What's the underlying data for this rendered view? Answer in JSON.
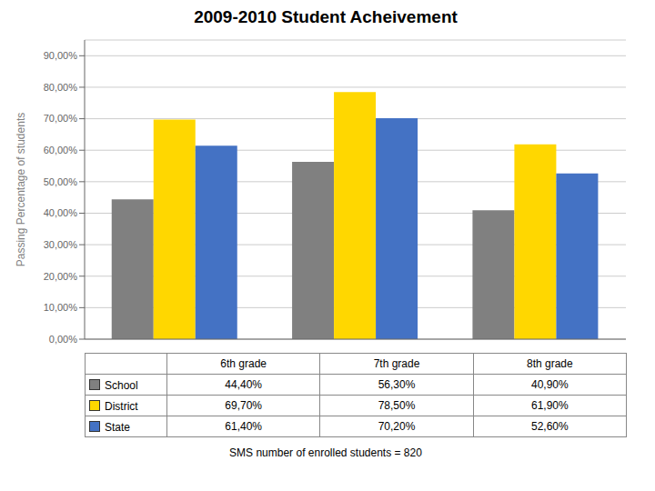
{
  "chart_data": {
    "type": "bar",
    "title": "2009-2010 Student Acheivement",
    "ylabel": "Passing Percentage of students",
    "categories": [
      "6th grade",
      "7th grade",
      "8th grade"
    ],
    "series": [
      {
        "name": "School",
        "color": "#808080",
        "values": [
          0.444,
          0.563,
          0.409
        ],
        "value_labels": [
          "44,40%",
          "56,30%",
          "40,90%"
        ]
      },
      {
        "name": "District",
        "color": "#FFD700",
        "values": [
          0.697,
          0.785,
          0.619
        ],
        "value_labels": [
          "69,70%",
          "78,50%",
          "61,90%"
        ]
      },
      {
        "name": "State",
        "color": "#4472C4",
        "values": [
          0.614,
          0.702,
          0.526
        ],
        "value_labels": [
          "61,40%",
          "70,20%",
          "52,60%"
        ]
      }
    ],
    "ylim": [
      0.0,
      0.95
    ],
    "yticks": [
      {
        "value": 0.0,
        "label": "0,00%"
      },
      {
        "value": 0.1,
        "label": "10,00%"
      },
      {
        "value": 0.2,
        "label": "20,00%"
      },
      {
        "value": 0.3,
        "label": "30,00%"
      },
      {
        "value": 0.4,
        "label": "40,00%"
      },
      {
        "value": 0.5,
        "label": "50,00%"
      },
      {
        "value": 0.6,
        "label": "60,00%"
      },
      {
        "value": 0.7,
        "label": "70,00%"
      },
      {
        "value": 0.8,
        "label": "80,00%"
      },
      {
        "value": 0.9,
        "label": "90,00%"
      }
    ],
    "grid": true,
    "tick_labels": "y",
    "annotations": [
      "SMS number of enrolled students = 820"
    ]
  }
}
